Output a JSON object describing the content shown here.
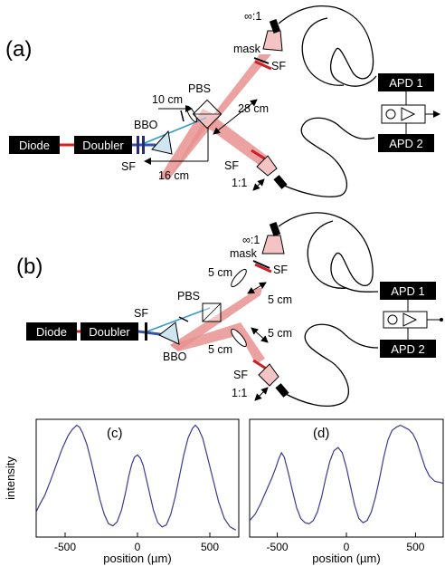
{
  "panels": {
    "a": "(a)",
    "b": "(b)",
    "c": "(c)",
    "d": "(d)"
  },
  "setup_a": {
    "diode": "Diode",
    "doubler": "Doubler",
    "bbo": "BBO",
    "sf_left": "SF",
    "pbs": "PBS",
    "mask": "mask",
    "ratio_top": "∞:1",
    "ratio_bottom": "1:1",
    "sf_top": "SF",
    "sf_bottom": "SF",
    "dist_10": "10 cm",
    "dist_16": "16 cm",
    "dist_28": "28 cm",
    "apd1": "APD 1",
    "apd2": "APD 2"
  },
  "setup_b": {
    "diode": "Diode",
    "doubler": "Doubler",
    "bbo": "BBO",
    "sf_left": "SF",
    "pbs": "PBS",
    "mask": "mask",
    "ratio_top": "∞:1",
    "ratio_bottom": "1:1",
    "sf_top": "SF",
    "sf_bottom": "SF",
    "dist_5a": "5 cm",
    "dist_5b": "5 cm",
    "dist_5c": "5 cm",
    "dist_5d": "5 cm",
    "apd1": "APD 1",
    "apd2": "APD 2"
  },
  "colors": {
    "beam": "#e8928f",
    "laser": "#d92020",
    "uv": "#3399cc",
    "curve": "#3d3a8f",
    "sf": "#cc1f2a"
  },
  "chart_data": [
    {
      "type": "line",
      "title": "(c)",
      "xlabel": "position (µm)",
      "ylabel": "intensity",
      "xlim": [
        -700,
        700
      ],
      "xticks": [
        "-500",
        "0",
        "500"
      ],
      "xtick_values": [
        -500,
        0,
        500
      ],
      "yticks_visible": false,
      "series": [
        {
          "x": [
            -720,
            -680,
            -640,
            -600,
            -560,
            -520,
            -480,
            -450,
            -420,
            -400,
            -380,
            -350,
            -320,
            -290,
            -260,
            -230,
            -200,
            -170,
            -140,
            -110,
            -80,
            -60,
            -40,
            -20,
            0,
            20,
            40,
            60,
            80,
            110,
            140,
            170,
            200,
            230,
            260,
            290,
            320,
            350,
            380,
            400,
            420,
            450,
            480,
            520,
            560,
            600,
            640,
            680
          ],
          "y": [
            0.18,
            0.24,
            0.34,
            0.48,
            0.63,
            0.78,
            0.9,
            0.96,
            1.0,
            0.98,
            0.93,
            0.82,
            0.66,
            0.48,
            0.3,
            0.16,
            0.07,
            0.05,
            0.09,
            0.2,
            0.38,
            0.52,
            0.63,
            0.7,
            0.72,
            0.69,
            0.62,
            0.5,
            0.38,
            0.2,
            0.08,
            0.04,
            0.06,
            0.16,
            0.32,
            0.52,
            0.72,
            0.88,
            0.97,
            1.0,
            0.97,
            0.88,
            0.72,
            0.5,
            0.28,
            0.12,
            0.04,
            0.01
          ]
        }
      ]
    },
    {
      "type": "line",
      "title": "(d)",
      "xlabel": "position (µm)",
      "xlim": [
        -700,
        700
      ],
      "xticks": [
        "-500",
        "0",
        "500"
      ],
      "xtick_values": [
        -500,
        0,
        500
      ],
      "yticks_visible": false,
      "series": [
        {
          "x": [
            -700,
            -660,
            -620,
            -580,
            -540,
            -510,
            -490,
            -470,
            -450,
            -420,
            -390,
            -360,
            -330,
            -300,
            -270,
            -240,
            -210,
            -180,
            -150,
            -120,
            -90,
            -60,
            -30,
            0,
            30,
            60,
            90,
            120,
            150,
            180,
            210,
            240,
            270,
            300,
            330,
            360,
            390,
            420,
            450,
            480,
            510,
            540,
            570,
            600,
            640,
            680,
            700
          ],
          "y": [
            0.1,
            0.16,
            0.26,
            0.38,
            0.5,
            0.6,
            0.68,
            0.74,
            0.7,
            0.55,
            0.38,
            0.22,
            0.12,
            0.08,
            0.07,
            0.1,
            0.18,
            0.32,
            0.5,
            0.66,
            0.76,
            0.79,
            0.74,
            0.6,
            0.42,
            0.24,
            0.12,
            0.08,
            0.1,
            0.18,
            0.32,
            0.5,
            0.7,
            0.86,
            0.95,
            0.98,
            1.0,
            0.98,
            0.96,
            0.92,
            0.84,
            0.72,
            0.6,
            0.52,
            0.47,
            0.46,
            0.45
          ]
        }
      ]
    }
  ]
}
